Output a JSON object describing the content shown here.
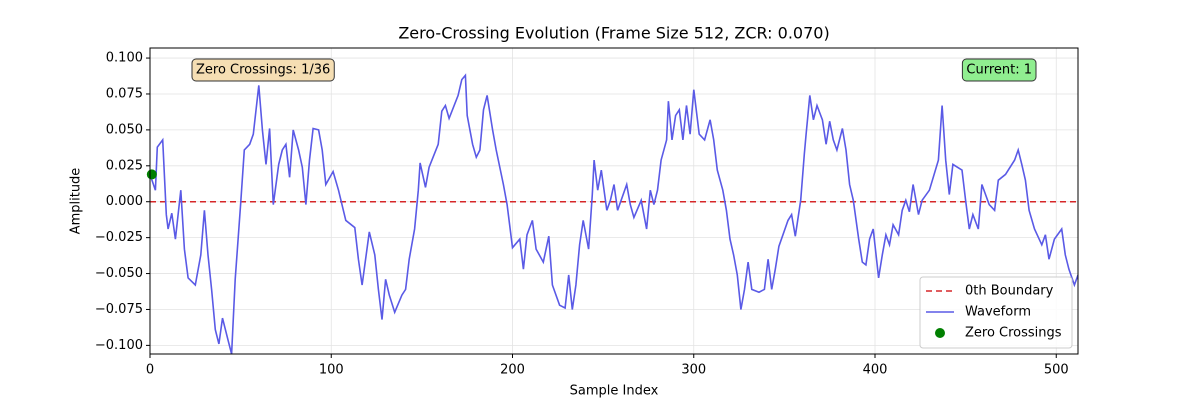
{
  "chart_data": {
    "type": "line",
    "title": "Zero-Crossing Evolution (Frame Size 512, ZCR: 0.070)",
    "xlabel": "Sample Index",
    "ylabel": "Amplitude",
    "xlim": [
      0,
      512
    ],
    "ylim": [
      -0.106,
      0.107
    ],
    "xticks": [
      0,
      100,
      200,
      300,
      400,
      500
    ],
    "yticks": [
      {
        "value": -0.1,
        "label": "−0.100"
      },
      {
        "value": -0.075,
        "label": "−0.075"
      },
      {
        "value": -0.05,
        "label": "−0.050"
      },
      {
        "value": -0.025,
        "label": "−0.025"
      },
      {
        "value": 0,
        "label": "0.000"
      },
      {
        "value": 0.025,
        "label": "0.025"
      },
      {
        "value": 0.05,
        "label": "0.050"
      },
      {
        "value": 0.075,
        "label": "0.075"
      },
      {
        "value": 0.1,
        "label": "0.100"
      }
    ],
    "grid": true,
    "legend": "lower right",
    "series": [
      {
        "name": "0th Boundary",
        "kind": "hline",
        "color": "#d62728",
        "values": [
          0
        ]
      },
      {
        "name": "Waveform",
        "kind": "line",
        "color": "#5a5ae6",
        "x": [
          0,
          3,
          4,
          7,
          9,
          10,
          12,
          14,
          17,
          19,
          21,
          25,
          28,
          30,
          32,
          34,
          36,
          38,
          40,
          43,
          45,
          47,
          50,
          52,
          55,
          57,
          60,
          62,
          64,
          66,
          68,
          71,
          73,
          75,
          77,
          79,
          82,
          84,
          86,
          88,
          90,
          93,
          95,
          97,
          101,
          104,
          108,
          113,
          115,
          117,
          121,
          124,
          126,
          128,
          130,
          132,
          135,
          139,
          141,
          143,
          146,
          148,
          149,
          152,
          154,
          159,
          161,
          163,
          165,
          170,
          172,
          174,
          175,
          178,
          180,
          182,
          184,
          186,
          189,
          191,
          195,
          197,
          200,
          204,
          206,
          208,
          211,
          213,
          217,
          220,
          222,
          224,
          226,
          229,
          231,
          233,
          235,
          237,
          239,
          242,
          244,
          245,
          247,
          249,
          252,
          254,
          256,
          258,
          263,
          265,
          267,
          271,
          274,
          276,
          278,
          280,
          282,
          285,
          286,
          288,
          290,
          292,
          294,
          296,
          298,
          300,
          303,
          306,
          309,
          311,
          313,
          316,
          318,
          320,
          322,
          324,
          326,
          328,
          330,
          332,
          336,
          339,
          341,
          343,
          345,
          347,
          352,
          354,
          356,
          359,
          361,
          362,
          364,
          366,
          368,
          371,
          373,
          375,
          377,
          379,
          382,
          384,
          386,
          388,
          391,
          393,
          395,
          397,
          399,
          402,
          404,
          406,
          408,
          410,
          413,
          415,
          417,
          419,
          421,
          424,
          426,
          430,
          435,
          437,
          439,
          441,
          443,
          448,
          450,
          452,
          454,
          457,
          459,
          463,
          466,
          468,
          472,
          477,
          479,
          481,
          483,
          485,
          488,
          492,
          494,
          496,
          499,
          503,
          505,
          507,
          510,
          512
        ],
        "values": [
          0.019,
          0.008,
          0.038,
          0.043,
          -0.009,
          -0.019,
          -0.008,
          -0.026,
          0.008,
          -0.033,
          -0.053,
          -0.058,
          -0.037,
          -0.006,
          -0.037,
          -0.061,
          -0.089,
          -0.099,
          -0.081,
          -0.096,
          -0.106,
          -0.054,
          -0.002,
          0.036,
          0.04,
          0.047,
          0.081,
          0.05,
          0.026,
          0.051,
          -0.002,
          0.026,
          0.036,
          0.04,
          0.017,
          0.05,
          0.036,
          0.024,
          -0.002,
          0.029,
          0.051,
          0.05,
          0.036,
          0.012,
          0.021,
          0.008,
          -0.013,
          -0.018,
          -0.04,
          -0.058,
          -0.021,
          -0.037,
          -0.061,
          -0.082,
          -0.054,
          -0.065,
          -0.077,
          -0.065,
          -0.061,
          -0.04,
          -0.019,
          0.008,
          0.027,
          0.01,
          0.024,
          0.04,
          0.063,
          0.067,
          0.058,
          0.074,
          0.085,
          0.088,
          0.06,
          0.04,
          0.031,
          0.036,
          0.064,
          0.074,
          0.05,
          0.036,
          0.012,
          -0.002,
          -0.032,
          -0.026,
          -0.047,
          -0.023,
          -0.013,
          -0.033,
          -0.042,
          -0.024,
          -0.058,
          -0.065,
          -0.072,
          -0.074,
          -0.051,
          -0.075,
          -0.058,
          -0.03,
          -0.013,
          -0.033,
          0.005,
          0.029,
          0.008,
          0.022,
          -0.006,
          0.001,
          0.012,
          -0.006,
          0.012,
          -0.002,
          -0.011,
          0.001,
          -0.019,
          0.008,
          -0.002,
          0.008,
          0.029,
          0.043,
          0.07,
          0.043,
          0.06,
          0.064,
          0.043,
          0.067,
          0.047,
          0.078,
          0.047,
          0.043,
          0.057,
          0.043,
          0.022,
          0.008,
          -0.006,
          -0.026,
          -0.037,
          -0.051,
          -0.075,
          -0.061,
          -0.042,
          -0.061,
          -0.063,
          -0.061,
          -0.04,
          -0.061,
          -0.047,
          -0.031,
          -0.013,
          -0.009,
          -0.024,
          0.001,
          0.033,
          0.047,
          0.074,
          0.057,
          0.067,
          0.057,
          0.04,
          0.056,
          0.043,
          0.036,
          0.051,
          0.036,
          0.012,
          0.001,
          -0.026,
          -0.042,
          -0.044,
          -0.026,
          -0.019,
          -0.053,
          -0.037,
          -0.023,
          -0.03,
          -0.016,
          -0.023,
          -0.006,
          0.001,
          -0.007,
          0.012,
          -0.009,
          0.001,
          0.008,
          0.029,
          0.067,
          0.029,
          0.005,
          0.026,
          0.022,
          0.001,
          -0.019,
          -0.009,
          -0.019,
          0.012,
          -0.002,
          -0.006,
          0.015,
          0.019,
          0.029,
          0.036,
          0.026,
          0.015,
          -0.006,
          -0.019,
          -0.03,
          -0.023,
          -0.04,
          -0.026,
          -0.019,
          -0.037,
          -0.047,
          -0.058,
          -0.051
        ]
      },
      {
        "name": "Zero Crossings",
        "kind": "scatter",
        "color": "#008000",
        "x": [
          1
        ],
        "values": [
          0.019
        ]
      }
    ],
    "annotations": [
      {
        "text": "Zero Crossings: 1/36",
        "corner": "upper left",
        "color": "#f5deb3"
      },
      {
        "text": "Current: 1",
        "corner": "upper right",
        "color": "#90ee90"
      }
    ]
  }
}
